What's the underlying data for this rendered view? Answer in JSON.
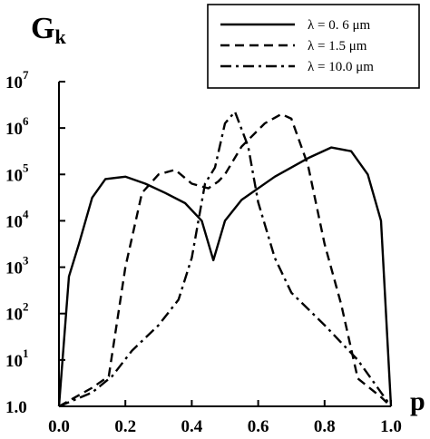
{
  "chart_data": {
    "type": "line",
    "title": "G",
    "title_subscript": "k",
    "xlabel": "p",
    "ylabel": "",
    "xlim": [
      0.0,
      1.0
    ],
    "ylim_log10": [
      0,
      7
    ],
    "y_scale": "log",
    "grid": false,
    "legend_position": "top-right",
    "x_ticks": [
      {
        "value": 0.0,
        "label": "0.0"
      },
      {
        "value": 0.2,
        "label": "0.2"
      },
      {
        "value": 0.4,
        "label": "0.4"
      },
      {
        "value": 0.6,
        "label": "0.6"
      },
      {
        "value": 0.8,
        "label": "0.8"
      },
      {
        "value": 1.0,
        "label": "1.0"
      }
    ],
    "y_ticks": [
      {
        "log": 0,
        "base": "1.0",
        "exp": ""
      },
      {
        "log": 1,
        "base": "10",
        "exp": "1"
      },
      {
        "log": 2,
        "base": "10",
        "exp": "2"
      },
      {
        "log": 3,
        "base": "10",
        "exp": "3"
      },
      {
        "log": 4,
        "base": "10",
        "exp": "4"
      },
      {
        "log": 5,
        "base": "10",
        "exp": "5"
      },
      {
        "log": 6,
        "base": "10",
        "exp": "6"
      },
      {
        "log": 7,
        "base": "10",
        "exp": "7"
      }
    ],
    "series": [
      {
        "name": "λ = 0. 6 μm",
        "dash": "solid",
        "points": [
          [
            0.0,
            0.0
          ],
          [
            0.03,
            2.8
          ],
          [
            0.06,
            3.5
          ],
          [
            0.1,
            4.5
          ],
          [
            0.14,
            4.9
          ],
          [
            0.2,
            4.95
          ],
          [
            0.26,
            4.8
          ],
          [
            0.32,
            4.6
          ],
          [
            0.38,
            4.38
          ],
          [
            0.43,
            4.0
          ],
          [
            0.465,
            3.15
          ],
          [
            0.5,
            4.0
          ],
          [
            0.55,
            4.45
          ],
          [
            0.65,
            4.95
          ],
          [
            0.75,
            5.35
          ],
          [
            0.82,
            5.58
          ],
          [
            0.88,
            5.5
          ],
          [
            0.93,
            5.0
          ],
          [
            0.97,
            4.0
          ],
          [
            1.0,
            0.0
          ]
        ]
      },
      {
        "name": "λ = 1.5 μm",
        "dash": "dashed",
        "points": [
          [
            0.0,
            0.0
          ],
          [
            0.1,
            0.4
          ],
          [
            0.15,
            0.65
          ],
          [
            0.2,
            3.0
          ],
          [
            0.25,
            4.6
          ],
          [
            0.3,
            5.0
          ],
          [
            0.35,
            5.1
          ],
          [
            0.4,
            4.8
          ],
          [
            0.45,
            4.7
          ],
          [
            0.48,
            4.85
          ],
          [
            0.5,
            5.0
          ],
          [
            0.55,
            5.6
          ],
          [
            0.62,
            6.1
          ],
          [
            0.67,
            6.3
          ],
          [
            0.7,
            6.2
          ],
          [
            0.75,
            5.2
          ],
          [
            0.8,
            3.5
          ],
          [
            0.85,
            2.2
          ],
          [
            0.9,
            0.6
          ],
          [
            0.97,
            0.2
          ],
          [
            1.0,
            0.0
          ]
        ]
      },
      {
        "name": "λ = 10.0 μm",
        "dash": "dashdot",
        "points": [
          [
            0.0,
            0.0
          ],
          [
            0.1,
            0.3
          ],
          [
            0.16,
            0.65
          ],
          [
            0.22,
            1.2
          ],
          [
            0.3,
            1.75
          ],
          [
            0.36,
            2.3
          ],
          [
            0.4,
            3.2
          ],
          [
            0.44,
            4.8
          ],
          [
            0.47,
            5.15
          ],
          [
            0.5,
            6.1
          ],
          [
            0.53,
            6.35
          ],
          [
            0.57,
            5.6
          ],
          [
            0.6,
            4.4
          ],
          [
            0.65,
            3.2
          ],
          [
            0.7,
            2.45
          ],
          [
            0.8,
            1.75
          ],
          [
            0.9,
            1.0
          ],
          [
            1.0,
            0.0
          ]
        ]
      }
    ]
  }
}
